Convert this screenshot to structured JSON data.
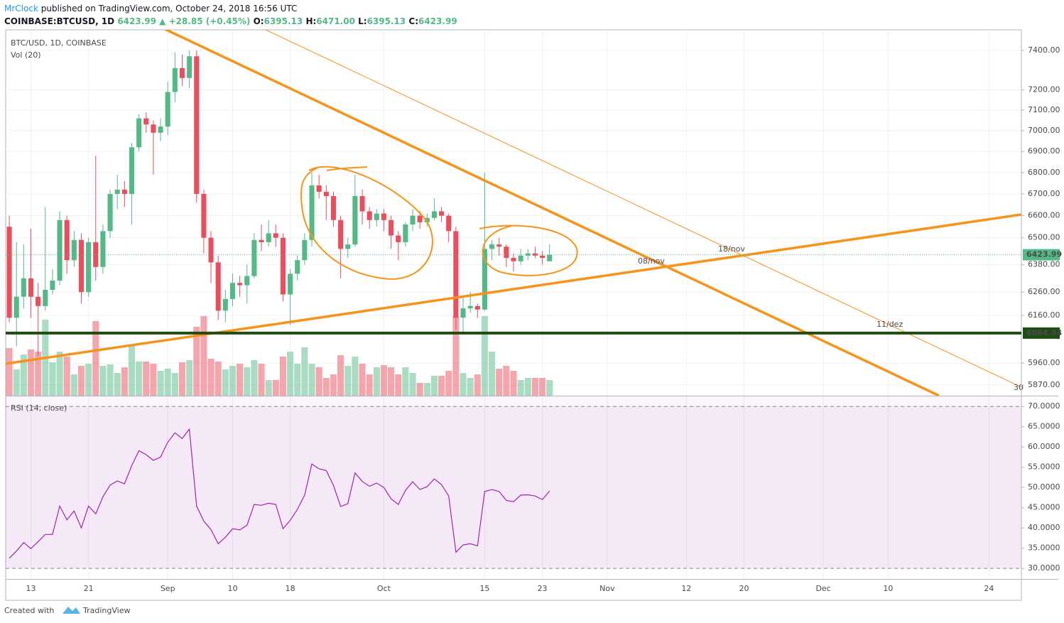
{
  "header": {
    "author": "MrClock",
    "published": "published on TradingView.com, October 24, 2018 16:56 UTC",
    "symbol": "COINBASE:BTCUSD, 1D",
    "last": "6423.99",
    "change": "▲ +28.85 (+0.45%)",
    "quote": [
      {
        "label": "O:",
        "value": "6395.13"
      },
      {
        "label": "H:",
        "value": "6471.00"
      },
      {
        "label": "L:",
        "value": "6395.13"
      },
      {
        "label": "C:",
        "value": "6423.99"
      }
    ]
  },
  "footer": {
    "created": "Created with",
    "brand": "TradingView"
  },
  "chart_data": [
    {
      "type": "candlestick",
      "title": "BTC/USD, 1D, COINBASE",
      "volume_label": "Vol (20)",
      "log": true,
      "grid": true,
      "up_color": "#53b987",
      "down_color": "#eb4d5c",
      "ylim": [
        5827,
        7506
      ],
      "yticks": [
        {
          "value": 5870,
          "label": "5870.00"
        },
        {
          "value": 5960,
          "label": "5960.00"
        },
        {
          "value": 6160,
          "label": "6160.00"
        },
        {
          "value": 6260,
          "label": "6260.00"
        },
        {
          "value": 6380,
          "label": "6380.00"
        },
        {
          "value": 6500,
          "label": "6500.00"
        },
        {
          "value": 6600,
          "label": "6600.00"
        },
        {
          "value": 6700,
          "label": "6700.00"
        },
        {
          "value": 6800,
          "label": "6800.00"
        },
        {
          "value": 6900,
          "label": "6900.00"
        },
        {
          "value": 7000,
          "label": "7000.00"
        },
        {
          "value": 7100,
          "label": "7100.00"
        },
        {
          "value": 7200,
          "label": "7200.00"
        },
        {
          "value": 7400,
          "label": "7400.00"
        }
      ],
      "xlim": [
        -0.5,
        140.5
      ],
      "xticks": [
        {
          "value": 3,
          "label": "13"
        },
        {
          "value": 11,
          "label": "21"
        },
        {
          "value": 22,
          "label": "Sep"
        },
        {
          "value": 31,
          "label": "10"
        },
        {
          "value": 39,
          "label": "18"
        },
        {
          "value": 52,
          "label": "Oct"
        },
        {
          "value": 66,
          "label": "15"
        },
        {
          "value": 74,
          "label": "23"
        },
        {
          "value": 83,
          "label": "Nov"
        },
        {
          "value": 94,
          "label": "12"
        },
        {
          "value": 102,
          "label": "20"
        },
        {
          "value": 113,
          "label": "Dec"
        },
        {
          "value": 122,
          "label": "10"
        },
        {
          "value": 136,
          "label": "24"
        }
      ],
      "open": [
        6550,
        6150,
        6240,
        6320,
        6240,
        6200,
        6270,
        6310,
        6580,
        6400,
        6490,
        6260,
        6480,
        6370,
        6530,
        6700,
        6720,
        6700,
        6920,
        7060,
        7030,
        6990,
        7020,
        7190,
        7310,
        7260,
        7370,
        6700,
        6500,
        6390,
        6180,
        6230,
        6300,
        6290,
        6330,
        6490,
        6480,
        6520,
        6500,
        6250,
        6340,
        6400,
        6490,
        6740,
        6710,
        6690,
        6580,
        6450,
        6470,
        6690,
        6620,
        6580,
        6610,
        6580,
        6510,
        6480,
        6560,
        6600,
        6570,
        6590,
        6620,
        6600,
        6530,
        6150,
        6190,
        6200,
        6185,
        6450,
        6470,
        6460,
        6410,
        6395,
        6420,
        6430,
        6420,
        6395.13
      ],
      "high": [
        6600,
        6480,
        6470,
        6540,
        6300,
        6640,
        6360,
        6620,
        6600,
        6530,
        6520,
        6500,
        6880,
        6560,
        6720,
        6790,
        6760,
        6940,
        7080,
        7090,
        7050,
        7060,
        7240,
        7390,
        7380,
        7400,
        7400,
        6720,
        6530,
        6420,
        6270,
        6340,
        6330,
        6380,
        6520,
        6560,
        6580,
        6560,
        6520,
        6360,
        6420,
        6520,
        6800,
        6790,
        6740,
        6710,
        6600,
        6500,
        6790,
        6720,
        6640,
        6630,
        6630,
        6600,
        6530,
        6570,
        6630,
        6620,
        6610,
        6680,
        6640,
        6610,
        6550,
        6240,
        6260,
        6210,
        6800,
        6490,
        6500,
        6470,
        6430,
        6450,
        6450,
        6460,
        6440,
        6471
      ],
      "low": [
        6130,
        6030,
        6190,
        6150,
        5990,
        6180,
        6250,
        6290,
        6340,
        6370,
        6210,
        6240,
        6310,
        6340,
        6500,
        6630,
        6640,
        6560,
        6900,
        6990,
        6790,
        6950,
        6980,
        7140,
        7220,
        7210,
        6660,
        6430,
        6300,
        6140,
        6130,
        6200,
        6240,
        6210,
        6320,
        6440,
        6460,
        6460,
        6220,
        6120,
        6310,
        6380,
        6460,
        6680,
        6580,
        6550,
        6320,
        6410,
        6460,
        6560,
        6540,
        6550,
        6530,
        6450,
        6400,
        6460,
        6530,
        6540,
        6550,
        6580,
        6570,
        6480,
        6100,
        6090,
        6170,
        6150,
        6180,
        6400,
        6420,
        6370,
        6350,
        6380,
        6400,
        6410,
        6380,
        6395.13
      ],
      "close": [
        6150,
        6240,
        6320,
        6240,
        6200,
        6270,
        6310,
        6580,
        6400,
        6490,
        6260,
        6480,
        6370,
        6530,
        6700,
        6720,
        6700,
        6920,
        7060,
        7030,
        6990,
        7020,
        7190,
        7310,
        7260,
        7370,
        6700,
        6500,
        6390,
        6180,
        6230,
        6300,
        6290,
        6330,
        6490,
        6480,
        6520,
        6500,
        6250,
        6340,
        6400,
        6490,
        6740,
        6710,
        6690,
        6580,
        6450,
        6470,
        6690,
        6620,
        6580,
        6610,
        6580,
        6510,
        6480,
        6560,
        6600,
        6570,
        6590,
        6620,
        6600,
        6530,
        6150,
        6190,
        6200,
        6185,
        6450,
        6470,
        6460,
        6410,
        6395,
        6420,
        6430,
        6420,
        6410,
        6423.99
      ],
      "volume": [
        6.7,
        3.7,
        5.8,
        6.5,
        6.2,
        10.7,
        4.7,
        6.2,
        5.5,
        3,
        4.2,
        4.5,
        10.5,
        4.2,
        4.4,
        3.2,
        4,
        7.2,
        4.8,
        4.8,
        4.5,
        3.5,
        3.8,
        3.2,
        4.7,
        5,
        9.7,
        11.2,
        5.2,
        4.8,
        3.7,
        4.2,
        4.5,
        4,
        5,
        4.5,
        2.2,
        2.2,
        5.5,
        6.2,
        4.5,
        6.8,
        4.5,
        4,
        2.5,
        3,
        5.7,
        4.2,
        5.5,
        4.5,
        3,
        4,
        4.3,
        4,
        3,
        4,
        3.2,
        1.8,
        1.8,
        2.8,
        2.8,
        3.5,
        11.2,
        3.2,
        2.5,
        3,
        11.2,
        6.2,
        3.8,
        4.2,
        3.5,
        2.2,
        2.5,
        2.5,
        2.5,
        2.2
      ],
      "vol_ylim": [
        0,
        51.5
      ],
      "price_lines": [
        {
          "value": 6084.94,
          "color": "#1e4d12"
        },
        {
          "value": 6423.99,
          "color": "#53b987"
        }
      ],
      "annotations": [
        "08/nov",
        "18/nov",
        "11/dez",
        "30"
      ]
    },
    {
      "type": "line",
      "title": "RSI (14, close)",
      "color": "#9c27b0",
      "band": [
        30,
        70
      ],
      "ylim": [
        27.4,
        72.5
      ],
      "yticks": [
        {
          "value": 30,
          "label": "30.0000"
        },
        {
          "value": 35,
          "label": "35.0000"
        },
        {
          "value": 40,
          "label": "40.0000"
        },
        {
          "value": 45,
          "label": "45.0000"
        },
        {
          "value": 50,
          "label": "50.0000"
        },
        {
          "value": 55,
          "label": "55.0000"
        },
        {
          "value": 60,
          "label": "60.0000"
        },
        {
          "value": 65,
          "label": "65.0000"
        },
        {
          "value": 70,
          "label": "70.0000"
        }
      ],
      "values": [
        32.5,
        34.3,
        36.4,
        34.9,
        36.6,
        38.4,
        38.4,
        45.4,
        42,
        44.2,
        40,
        45.4,
        43.5,
        47.7,
        50.6,
        51.6,
        50.9,
        55.4,
        59.1,
        58.1,
        56.7,
        57.5,
        61.2,
        63.5,
        62.1,
        64.4,
        45.4,
        41.7,
        39.6,
        36.1,
        37.7,
        39.8,
        39.5,
        40.7,
        45.8,
        45.6,
        46.1,
        45.8,
        39.8,
        41.9,
        44.6,
        48.1,
        55.8,
        54.6,
        54.2,
        50.5,
        45.3,
        46,
        53.6,
        51.5,
        50.3,
        51.1,
        50,
        47.2,
        45.8,
        49.3,
        51.4,
        49.5,
        50.2,
        52.1,
        50.7,
        47.9,
        34,
        35.8,
        36.1,
        35.6,
        49,
        49.5,
        49,
        46.8,
        46.5,
        48.1,
        48.2,
        47.9,
        47,
        49.1
      ]
    }
  ]
}
